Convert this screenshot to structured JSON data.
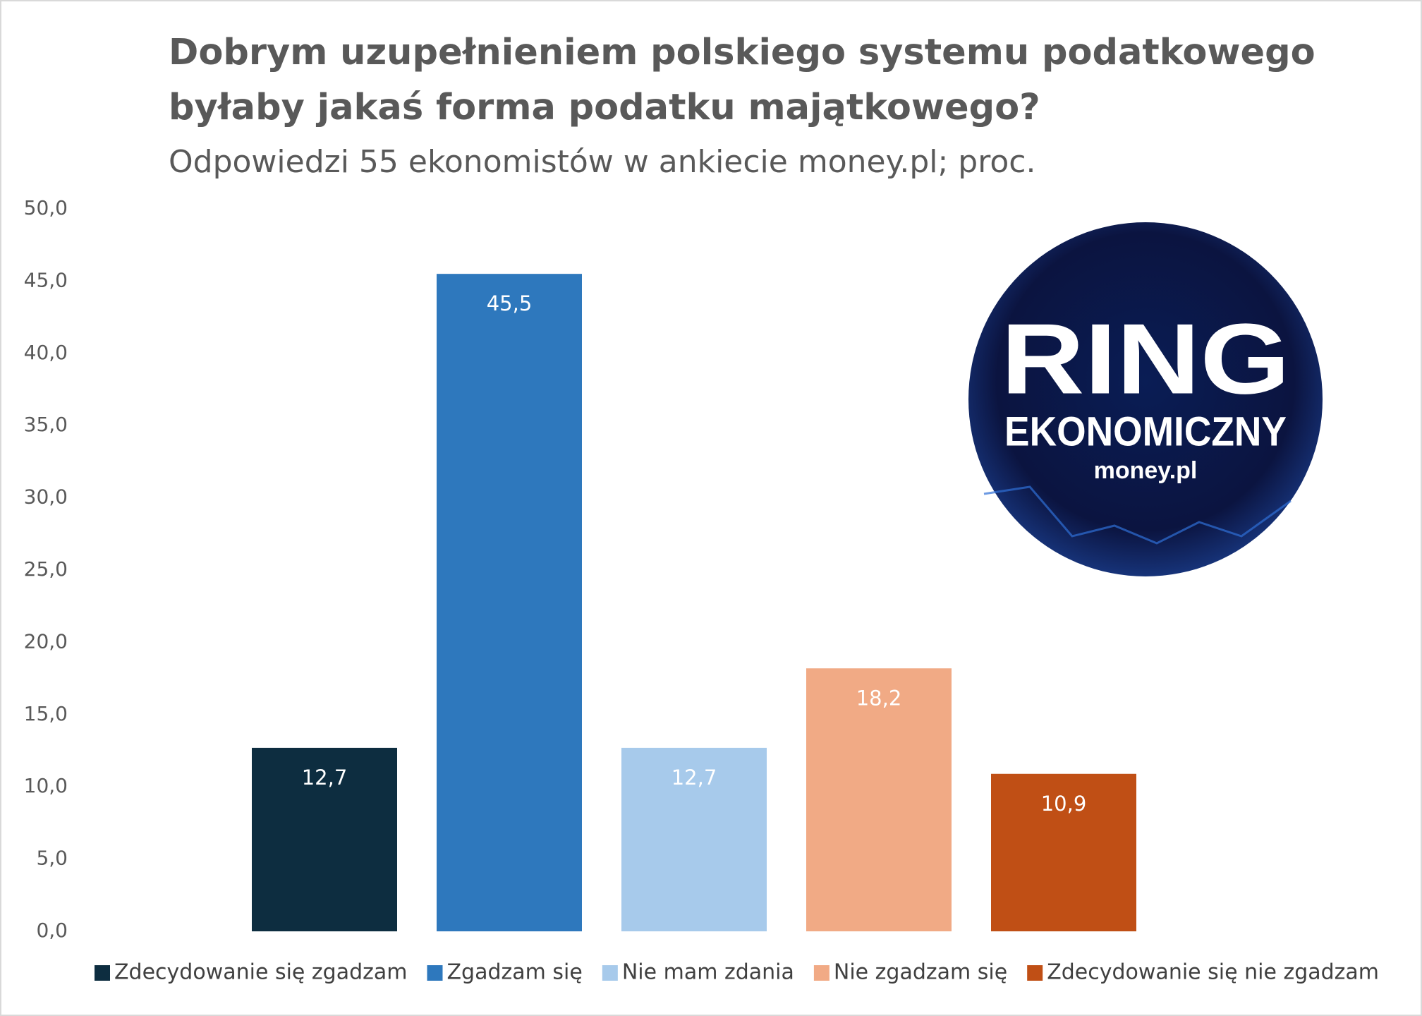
{
  "chart_data": {
    "type": "bar",
    "title_lines": [
      "Dobrym uzupełnieniem polskiego systemu podatkowego",
      "byłaby jakaś forma podatku majątkowego?"
    ],
    "subtitle": "Odpowiedzi 55 ekonomistów w ankiecie money.pl; proc.",
    "categories": [
      null
    ],
    "series": [
      {
        "name": "Zdecydowanie się zgadzam",
        "color": "#0d2d40",
        "values": [
          12.7
        ],
        "value_labels": [
          "12,7"
        ]
      },
      {
        "name": "Zgadzam się",
        "color": "#2e78bd",
        "values": [
          45.5
        ],
        "value_labels": [
          "45,5"
        ]
      },
      {
        "name": "Nie mam zdania",
        "color": "#a7caeb",
        "values": [
          12.7
        ],
        "value_labels": [
          "12,7"
        ]
      },
      {
        "name": "Nie zgadzam się",
        "color": "#f1aa85",
        "values": [
          18.2
        ],
        "value_labels": [
          "18,2"
        ]
      },
      {
        "name": "Zdecydowanie się nie zgadzam",
        "color": "#c04f15",
        "values": [
          10.9
        ],
        "value_labels": [
          "10,9"
        ]
      }
    ],
    "ylim": [
      0,
      50
    ],
    "yticks": [
      {
        "value": 0,
        "label": "0,0"
      },
      {
        "value": 5,
        "label": "5,0"
      },
      {
        "value": 10,
        "label": "10,0"
      },
      {
        "value": 15,
        "label": "15,0"
      },
      {
        "value": 20,
        "label": "20,0"
      },
      {
        "value": 25,
        "label": "25,0"
      },
      {
        "value": 30,
        "label": "30,0"
      },
      {
        "value": 35,
        "label": "35,0"
      },
      {
        "value": 40,
        "label": "40,0"
      },
      {
        "value": 45,
        "label": "45,0"
      },
      {
        "value": 50,
        "label": "50,0"
      }
    ],
    "grid": false,
    "legend": "bottom",
    "logo_text": [
      "RING",
      "EKONOMICZNY",
      "money.pl"
    ]
  }
}
